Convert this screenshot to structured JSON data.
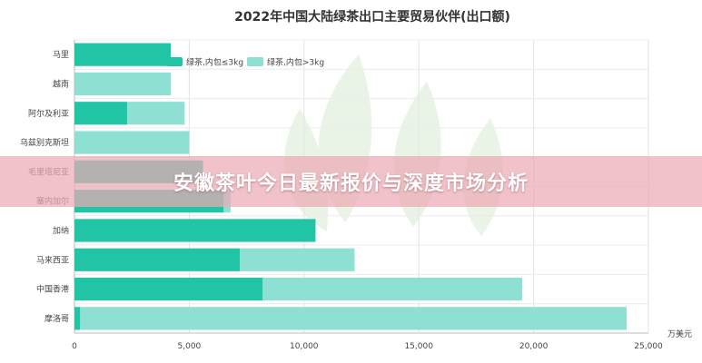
{
  "chart_data": {
    "type": "bar",
    "orientation": "horizontal",
    "stacked": true,
    "title": "2022年中国大陆绿茶出口主要贸易伙伴(出口额)",
    "unit": "万美元",
    "categories": [
      "马里",
      "越南",
      "阿尔及利亚",
      "乌兹别克斯坦",
      "毛里塔尼亚",
      "塞内加尔",
      "加纳",
      "马来西亚",
      "中国香港",
      "摩洛哥"
    ],
    "series": [
      {
        "name": "绿茶,内包≤3kg",
        "color": "#21c4a5",
        "values": [
          4200,
          0,
          2300,
          0,
          5600,
          6500,
          10500,
          7200,
          8200,
          250
        ]
      },
      {
        "name": "绿茶,内包>3kg",
        "color": "#8ee0d2",
        "values": [
          0,
          4200,
          2500,
          5000,
          0,
          300,
          0,
          5000,
          11300,
          23800
        ]
      }
    ],
    "xlim": [
      0,
      25000
    ],
    "xticks": [
      "0",
      "5,000",
      "10,000",
      "15,000",
      "20,000",
      "25,000"
    ],
    "grid": true,
    "legend_position": "top-left"
  },
  "banner": {
    "text": "安徽茶叶今日最新报价与深度市场分析"
  }
}
